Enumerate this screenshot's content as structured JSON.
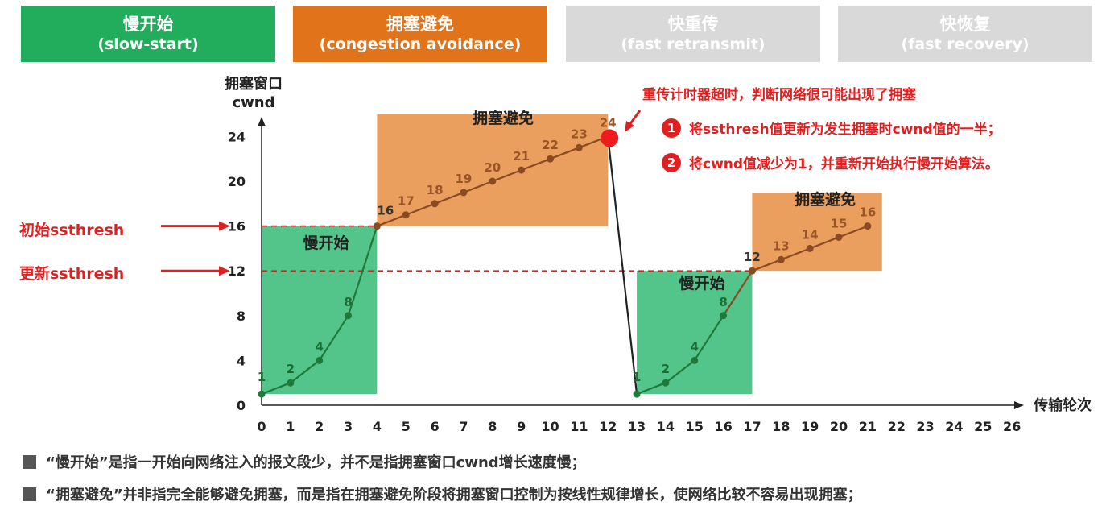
{
  "phases": [
    {
      "name": "慢开始",
      "sub": "(slow-start)",
      "color": "#21ad5b"
    },
    {
      "name": "拥塞避免",
      "sub": "(congestion avoidance)",
      "color": "#e1731a"
    },
    {
      "name": "快重传",
      "sub": "(fast retransmit)",
      "color": "#d9d9d9"
    },
    {
      "name": "快恢复",
      "sub": "(fast recovery)",
      "color": "#d9d9d9"
    }
  ],
  "chart_data": {
    "type": "line",
    "ylabel_line1": "拥塞窗口",
    "ylabel_line2": "cwnd",
    "xlabel": "传输轮次",
    "x_ticks": [
      0,
      1,
      2,
      3,
      4,
      5,
      6,
      7,
      8,
      9,
      10,
      11,
      12,
      13,
      14,
      15,
      16,
      17,
      18,
      19,
      20,
      21,
      22,
      23,
      24,
      25,
      26
    ],
    "y_ticks": [
      0,
      4,
      8,
      12,
      16,
      20,
      24
    ],
    "xlim": [
      0,
      26
    ],
    "ylim": [
      0,
      26
    ],
    "series": [
      {
        "x": [
          0,
          1,
          2,
          3,
          4,
          5,
          6,
          7,
          8,
          9,
          10,
          11,
          12,
          13,
          14,
          15,
          16,
          17,
          18,
          19,
          20,
          21
        ],
        "y": [
          1,
          2,
          4,
          8,
          16,
          17,
          18,
          19,
          20,
          21,
          22,
          23,
          24,
          1,
          2,
          4,
          8,
          12,
          13,
          14,
          15,
          16
        ],
        "labels": [
          "1",
          "2",
          "4",
          "8",
          "16",
          "17",
          "18",
          "19",
          "20",
          "21",
          "22",
          "23",
          "24",
          "1",
          "2",
          "4",
          "8",
          "12",
          "13",
          "14",
          "15",
          "16"
        ]
      }
    ],
    "regions": [
      {
        "label": "慢开始",
        "x": [
          0,
          4
        ],
        "y": [
          1,
          16
        ],
        "color": "#54c58a"
      },
      {
        "label": "拥塞避免",
        "x": [
          4,
          12
        ],
        "y": [
          16,
          26
        ],
        "color": "#eb9f5e"
      },
      {
        "label": "慢开始",
        "x": [
          13,
          17
        ],
        "y": [
          1,
          12
        ],
        "color": "#54c58a"
      },
      {
        "label": "拥塞避免",
        "x": [
          17,
          21.5
        ],
        "y": [
          12,
          19
        ],
        "color": "#eb9f5e"
      }
    ],
    "thresholds": [
      {
        "label": "初始ssthresh",
        "value": 16
      },
      {
        "label": "更新ssthresh",
        "value": 12
      }
    ],
    "timeout_point": {
      "x": 12,
      "y": 24
    }
  },
  "timeout_note": "重传计时器超时，判断网络很可能出现了拥塞",
  "actions": [
    {
      "num": "1",
      "text": "将ssthresh值更新为发生拥塞时cwnd值的一半；"
    },
    {
      "num": "2",
      "text": "将cwnd值减少为1，并重新开始执行慢开始算法。"
    }
  ],
  "notes": [
    "“慢开始”是指一开始向网络注入的报文段少，并不是指拥塞窗口cwnd增长速度慢；",
    "“拥塞避免”并非指完全能够避免拥塞，而是指在拥塞避免阶段将拥塞窗口控制为按线性规律增长，使网络比较不容易出现拥塞；"
  ]
}
